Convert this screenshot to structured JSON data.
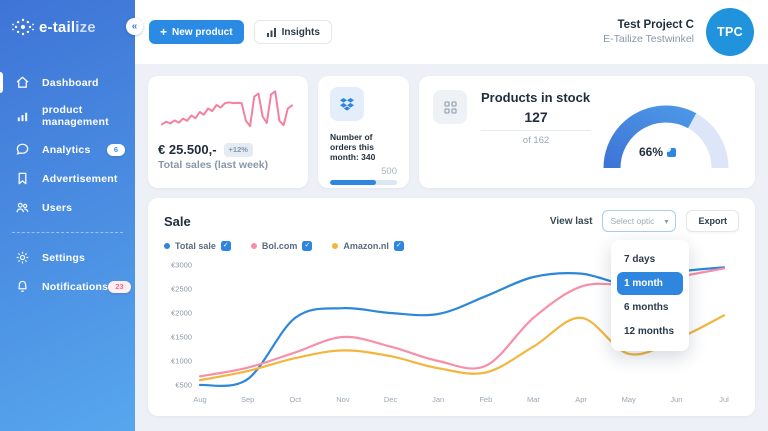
{
  "colors": {
    "accent_blue": "#2E86DE",
    "sidebar_gradient_start": "#3E74D6",
    "sidebar_gradient_end": "#57A7ED",
    "spark_pink": "#F5809D",
    "badge_pink": "#F56D8C",
    "progress_track": "#DCE6F5",
    "gauge_track": "#DDE6F8"
  },
  "sidebar": {
    "logo_primary": "e-tail",
    "logo_secondary": "ize",
    "collapse_icon": "«",
    "items": [
      {
        "label": "Dashboard",
        "icon": "home-icon",
        "active": true
      },
      {
        "label": "product management",
        "icon": "bar-chart-icon"
      },
      {
        "label": "Analytics",
        "icon": "chat-icon",
        "badge": "6"
      },
      {
        "label": "Advertisement",
        "icon": "bookmark-icon"
      },
      {
        "label": "Users",
        "icon": "users-icon"
      },
      {
        "label": "Settings",
        "icon": "gear-icon"
      },
      {
        "label": "Notifications",
        "icon": "bell-icon",
        "badge": "23"
      }
    ]
  },
  "header": {
    "new_product_label": "New product",
    "plus_icon": "+",
    "insights_label": "Insights",
    "project_name": "Test Project C",
    "project_subtitle": "E-Tailize Testwinkel",
    "avatar_initials": "TPC"
  },
  "cards": {
    "total_sales": {
      "value": "€ 25.500,-",
      "change_badge": "+12%",
      "caption": "Total sales (last week)",
      "sparkline": [
        22,
        28,
        24,
        31,
        26,
        35,
        30,
        42,
        36,
        50,
        44,
        58,
        52,
        66,
        60,
        70,
        72,
        70,
        71,
        70,
        30,
        18,
        85,
        92,
        40,
        25,
        90,
        97,
        30,
        20,
        58,
        65
      ]
    },
    "orders": {
      "label": "Number of orders this month: 340",
      "max_label": "500",
      "progress_pct": 68
    },
    "stock": {
      "title": "Products in stock",
      "count": "127",
      "of_label": "of 162",
      "pct_label": "66%",
      "pct": 66
    }
  },
  "sale_panel": {
    "title": "Sale",
    "view_last_label": "View last",
    "select_placeholder": "Select optic",
    "chevron_icon": "▾",
    "export_label": "Export",
    "dropdown_options": [
      {
        "label": "7 days",
        "selected": false
      },
      {
        "label": "1 month",
        "selected": true
      },
      {
        "label": "6 months",
        "selected": false
      },
      {
        "label": "12 months",
        "selected": false
      }
    ],
    "legend": [
      {
        "label": "Total sale",
        "color": "#2D87D8"
      },
      {
        "label": "Bol.com",
        "color": "#F78FA8"
      },
      {
        "label": "Amazon.nl",
        "color": "#F2B63F"
      }
    ]
  },
  "chart_data": {
    "type": "line",
    "title": "Sale",
    "x": [
      "Aug",
      "Sep",
      "Oct",
      "Nov",
      "Dec",
      "Jan",
      "Feb",
      "Mar",
      "Apr",
      "May",
      "Jun",
      "Jul"
    ],
    "series": [
      {
        "name": "Total sale",
        "color": "#2D87D8",
        "values": [
          500,
          620,
          1900,
          2100,
          2000,
          1980,
          2350,
          2750,
          2820,
          2600,
          2850,
          2950
        ]
      },
      {
        "name": "Bol.com",
        "color": "#F78FA8",
        "values": [
          680,
          860,
          1180,
          1500,
          1300,
          1000,
          900,
          1900,
          2550,
          2600,
          2750,
          2930
        ]
      },
      {
        "name": "Amazon.nl",
        "color": "#F2B63F",
        "values": [
          600,
          790,
          1060,
          1220,
          1100,
          850,
          760,
          1300,
          1900,
          1150,
          1450,
          1950
        ]
      }
    ],
    "ylim": [
      500,
      3000
    ],
    "yticks": [
      500,
      1000,
      1500,
      2000,
      2500,
      3000
    ],
    "ylabels": [
      "€500",
      "€1000",
      "€1500",
      "€2000",
      "€2500",
      "€3000"
    ],
    "grid": false,
    "legend_position": "top-left"
  }
}
